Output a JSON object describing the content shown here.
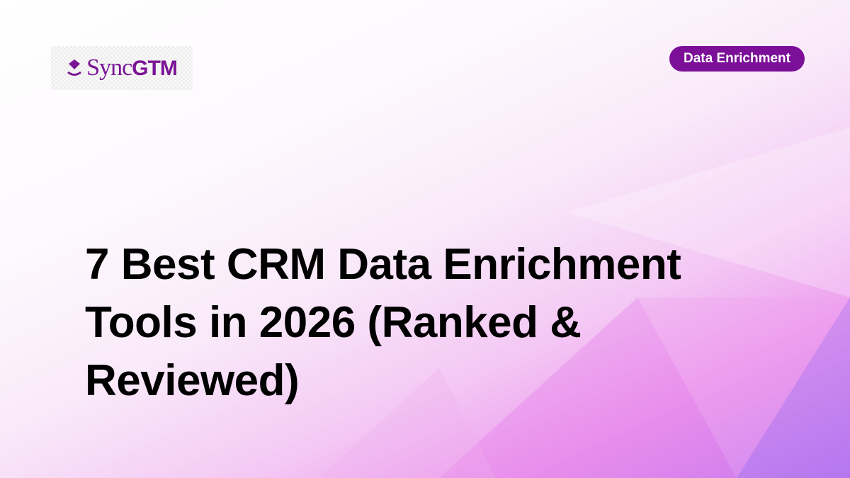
{
  "logo": {
    "text_light": "Sync",
    "text_bold": "GTM"
  },
  "badge": {
    "label": "Data Enrichment"
  },
  "title": "7 Best CRM Data Enrichment Tools in 2026 (Ranked & Reviewed)",
  "colors": {
    "brand": "#7b0f98",
    "accent_gradient_end": "#c07bf0"
  }
}
